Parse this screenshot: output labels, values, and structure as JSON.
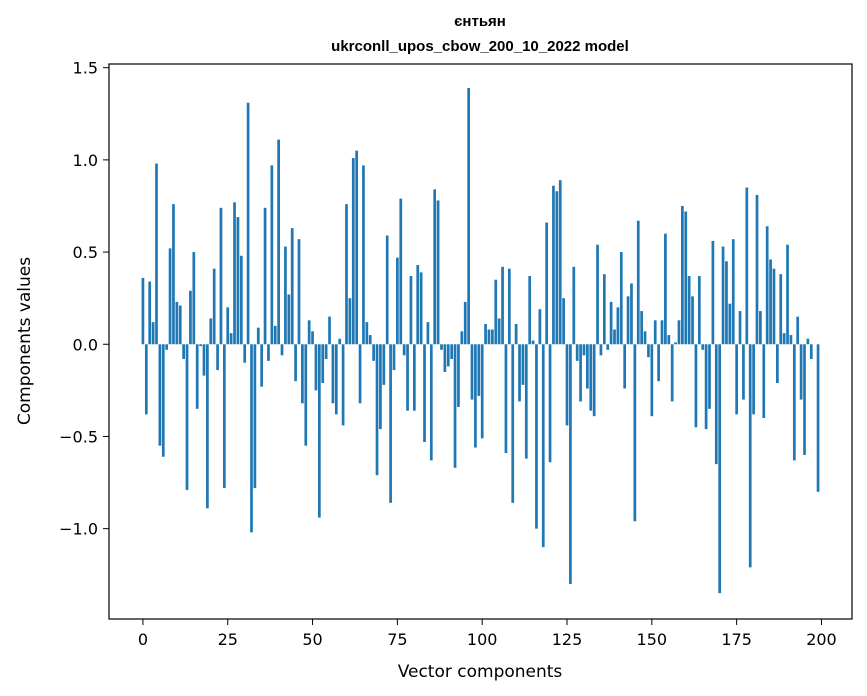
{
  "chart_data": {
    "type": "bar",
    "title": "єнтьян",
    "subtitle": "ukrconll_upos_cbow_200_10_2022 model",
    "xlabel": "Vector components",
    "ylabel": "Components values",
    "xlim": [
      -10,
      209
    ],
    "ylim": [
      -1.49,
      1.52
    ],
    "xticks": [
      0,
      25,
      50,
      75,
      100,
      125,
      150,
      175,
      200
    ],
    "xtick_labels": [
      "0",
      "25",
      "50",
      "75",
      "100",
      "125",
      "150",
      "175",
      "200"
    ],
    "yticks": [
      -1.0,
      -0.5,
      0.0,
      0.5,
      1.0,
      1.5
    ],
    "ytick_labels": [
      "−1.0",
      "−0.5",
      "0.0",
      "0.5",
      "1.0",
      "1.5"
    ],
    "grid": false,
    "bar_color": "#1f77b4",
    "values": [
      0.36,
      -0.38,
      0.34,
      0.12,
      0.98,
      -0.55,
      -0.61,
      -0.03,
      0.52,
      0.76,
      0.23,
      0.21,
      -0.08,
      -0.79,
      0.29,
      0.5,
      -0.35,
      -0.01,
      -0.17,
      -0.89,
      0.14,
      0.41,
      -0.14,
      0.74,
      -0.78,
      0.2,
      0.06,
      0.77,
      0.69,
      0.48,
      -0.1,
      1.31,
      -1.02,
      -0.78,
      0.09,
      -0.23,
      0.74,
      -0.09,
      0.97,
      0.1,
      1.11,
      -0.06,
      0.53,
      0.27,
      0.63,
      -0.2,
      0.57,
      -0.32,
      -0.55,
      0.13,
      0.07,
      -0.25,
      -0.94,
      -0.21,
      -0.08,
      0.15,
      -0.32,
      -0.38,
      0.03,
      -0.44,
      0.76,
      0.25,
      1.01,
      1.05,
      -0.32,
      0.97,
      0.12,
      0.05,
      -0.09,
      -0.71,
      -0.46,
      -0.22,
      0.59,
      -0.86,
      -0.14,
      0.47,
      0.79,
      -0.06,
      -0.36,
      0.37,
      -0.36,
      0.43,
      0.39,
      -0.53,
      0.12,
      -0.63,
      0.84,
      0.78,
      -0.03,
      -0.15,
      -0.12,
      -0.08,
      -0.67,
      -0.34,
      0.07,
      0.23,
      1.39,
      -0.3,
      -0.56,
      -0.28,
      -0.51,
      0.11,
      0.08,
      0.08,
      0.35,
      0.14,
      0.42,
      -0.59,
      0.41,
      -0.86,
      0.11,
      -0.31,
      -0.22,
      -0.62,
      0.37,
      0.02,
      -1.0,
      0.19,
      -1.1,
      0.66,
      -0.64,
      0.86,
      0.83,
      0.89,
      0.25,
      -0.44,
      -1.3,
      0.42,
      -0.09,
      -0.31,
      -0.06,
      -0.24,
      -0.36,
      -0.39,
      0.54,
      -0.06,
      0.38,
      -0.03,
      0.23,
      0.08,
      0.2,
      0.5,
      -0.24,
      0.26,
      0.33,
      -0.96,
      0.67,
      0.18,
      0.07,
      -0.07,
      -0.39,
      0.13,
      -0.2,
      0.13,
      0.6,
      0.05,
      -0.31,
      0.01,
      0.13,
      0.75,
      0.72,
      0.37,
      0.26,
      -0.45,
      0.37,
      -0.03,
      -0.46,
      -0.35,
      0.56,
      -0.65,
      -1.35,
      0.53,
      0.45,
      0.22,
      0.57,
      -0.38,
      0.18,
      -0.3,
      0.85,
      -1.21,
      -0.38,
      0.81,
      0.18,
      -0.4,
      0.64,
      0.46,
      0.41,
      -0.21,
      0.38,
      0.06,
      0.54,
      0.05,
      -0.63,
      0.15,
      -0.3,
      -0.6,
      0.03,
      -0.08,
      0.0,
      -0.8
    ]
  }
}
